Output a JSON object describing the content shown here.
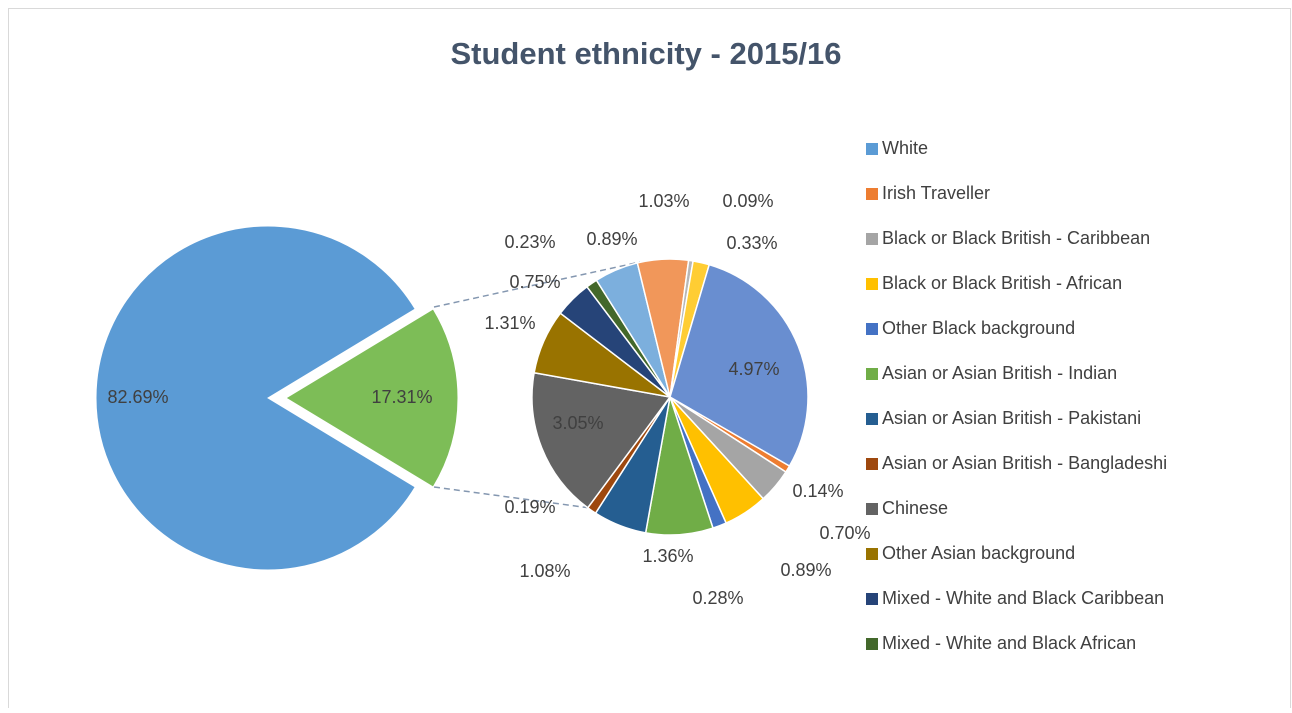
{
  "chart_data": {
    "type": "pie-of-pie",
    "title": "Student ethnicity - 2015/16",
    "categories": [
      "White",
      "Irish Traveller",
      "Black or Black British - Caribbean",
      "Black or Black British - African",
      "Other Black background",
      "Asian or Asian British - Indian",
      "Asian or Asian British - Pakistani",
      "Asian or Asian British - Bangladeshi",
      "Chinese",
      "Other Asian background",
      "Mixed - White and Black Caribbean",
      "Mixed - White and Black African",
      null,
      null,
      null,
      null,
      null
    ],
    "values": [
      82.69,
      0.14,
      0.7,
      0.89,
      0.28,
      1.36,
      1.08,
      0.19,
      3.05,
      1.31,
      0.75,
      0.23,
      0.89,
      1.03,
      0.09,
      0.33,
      4.97
    ],
    "value_labels": [
      "82.69%",
      "0.14%",
      "0.70%",
      "0.89%",
      "0.28%",
      "1.36%",
      "1.08%",
      "0.19%",
      "3.05%",
      "1.31%",
      "0.75%",
      "0.23%",
      "0.89%",
      "1.03%",
      "0.09%",
      "0.33%",
      "4.97%"
    ],
    "colors": [
      "#5b9bd5",
      "#ed7d31",
      "#a5a5a5",
      "#ffc000",
      "#4472c4",
      "#70ad47",
      "#255e91",
      "#9e480e",
      "#636363",
      "#997300",
      "#264478",
      "#43682b",
      "#7cafdd",
      "#f1975a",
      "#b7b7b7",
      "#ffcd33",
      "#698ed0"
    ],
    "secondary_total": 17.31,
    "secondary_total_label": "17.31%",
    "secondary_color": "#7dbd57",
    "legend": "right"
  }
}
